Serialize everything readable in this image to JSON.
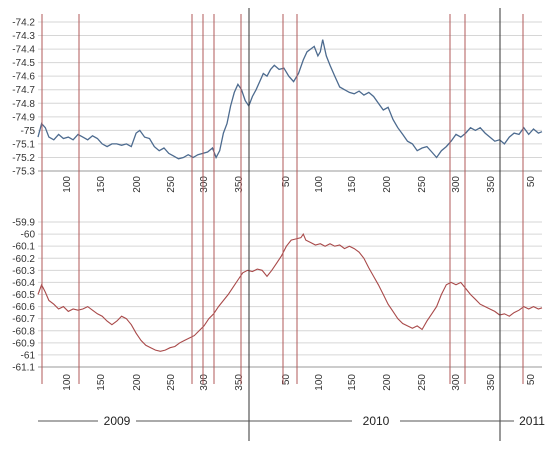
{
  "chart_data": [
    {
      "id": "top",
      "type": "line",
      "ylim": [
        -75.3,
        -74.2
      ],
      "yticks": [
        "-74.2",
        "-74.3",
        "-74.4",
        "-74.5",
        "-74.6",
        "-74.7",
        "-74.8",
        "-74.9",
        "-75",
        "-75.1",
        "-75.2",
        "-75.3"
      ],
      "xticks": [
        "100",
        "150",
        "200",
        "250",
        "300",
        "350",
        "50",
        "100",
        "150",
        "200",
        "250",
        "300",
        "350",
        "50"
      ],
      "grid": true,
      "series": [
        {
          "color": "#4d6b8f",
          "points": [
            [
              0,
              -75.05
            ],
            [
              3,
              -74.95
            ],
            [
              6,
              -74.98
            ],
            [
              9,
              -75.05
            ],
            [
              13,
              -75.07
            ],
            [
              17,
              -75.03
            ],
            [
              21,
              -75.06
            ],
            [
              25,
              -75.05
            ],
            [
              29,
              -75.07
            ],
            [
              33,
              -75.03
            ],
            [
              37,
              -75.05
            ],
            [
              41,
              -75.07
            ],
            [
              45,
              -75.04
            ],
            [
              49,
              -75.06
            ],
            [
              53,
              -75.1
            ],
            [
              57,
              -75.12
            ],
            [
              61,
              -75.1
            ],
            [
              65,
              -75.1
            ],
            [
              69,
              -75.11
            ],
            [
              73,
              -75.1
            ],
            [
              77,
              -75.12
            ],
            [
              81,
              -75.02
            ],
            [
              84,
              -75.0
            ],
            [
              88,
              -75.05
            ],
            [
              92,
              -75.06
            ],
            [
              96,
              -75.12
            ],
            [
              100,
              -75.15
            ],
            [
              104,
              -75.13
            ],
            [
              108,
              -75.17
            ],
            [
              112,
              -75.19
            ],
            [
              116,
              -75.21
            ],
            [
              120,
              -75.2
            ],
            [
              124,
              -75.18
            ],
            [
              128,
              -75.2
            ],
            [
              132,
              -75.18
            ],
            [
              136,
              -75.17
            ],
            [
              140,
              -75.16
            ],
            [
              144,
              -75.13
            ],
            [
              147,
              -75.2
            ],
            [
              150,
              -75.15
            ],
            [
              153,
              -75.02
            ],
            [
              156,
              -74.95
            ],
            [
              159,
              -74.82
            ],
            [
              162,
              -74.72
            ],
            [
              165,
              -74.66
            ],
            [
              168,
              -74.7
            ],
            [
              171,
              -74.78
            ],
            [
              174,
              -74.82
            ],
            [
              177,
              -74.75
            ],
            [
              180,
              -74.7
            ],
            [
              183,
              -74.64
            ],
            [
              186,
              -74.58
            ],
            [
              189,
              -74.6
            ],
            [
              192,
              -74.55
            ],
            [
              195,
              -74.52
            ],
            [
              199,
              -74.55
            ],
            [
              203,
              -74.54
            ],
            [
              207,
              -74.6
            ],
            [
              211,
              -74.64
            ],
            [
              215,
              -74.58
            ],
            [
              219,
              -74.48
            ],
            [
              222,
              -74.42
            ],
            [
              225,
              -74.4
            ],
            [
              228,
              -74.38
            ],
            [
              231,
              -74.45
            ],
            [
              233,
              -74.42
            ],
            [
              235,
              -74.33
            ],
            [
              238,
              -74.45
            ],
            [
              241,
              -74.52
            ],
            [
              245,
              -74.6
            ],
            [
              249,
              -74.68
            ],
            [
              253,
              -74.7
            ],
            [
              257,
              -74.72
            ],
            [
              261,
              -74.73
            ],
            [
              265,
              -74.71
            ],
            [
              269,
              -74.74
            ],
            [
              273,
              -74.72
            ],
            [
              277,
              -74.75
            ],
            [
              281,
              -74.8
            ],
            [
              285,
              -74.85
            ],
            [
              289,
              -74.83
            ],
            [
              293,
              -74.92
            ],
            [
              297,
              -74.98
            ],
            [
              301,
              -75.03
            ],
            [
              305,
              -75.08
            ],
            [
              309,
              -75.1
            ],
            [
              313,
              -75.15
            ],
            [
              317,
              -75.13
            ],
            [
              321,
              -75.12
            ],
            [
              325,
              -75.16
            ],
            [
              329,
              -75.2
            ],
            [
              333,
              -75.15
            ],
            [
              337,
              -75.12
            ],
            [
              341,
              -75.08
            ],
            [
              345,
              -75.03
            ],
            [
              349,
              -75.05
            ],
            [
              353,
              -75.02
            ],
            [
              357,
              -74.98
            ],
            [
              361,
              -75.0
            ],
            [
              365,
              -74.98
            ],
            [
              369,
              -75.02
            ],
            [
              373,
              -75.05
            ],
            [
              377,
              -75.08
            ],
            [
              381,
              -75.07
            ],
            [
              385,
              -75.1
            ],
            [
              389,
              -75.05
            ],
            [
              393,
              -75.02
            ],
            [
              397,
              -75.03
            ],
            [
              401,
              -74.98
            ],
            [
              405,
              -75.03
            ],
            [
              409,
              -74.99
            ],
            [
              413,
              -75.02
            ],
            [
              416,
              -75.01
            ]
          ]
        }
      ]
    },
    {
      "id": "bottom",
      "type": "line",
      "ylim": [
        -61.1,
        -59.9
      ],
      "yticks": [
        "-59.9",
        "-60",
        "-60.1",
        "-60.2",
        "-60.3",
        "-60.4",
        "-60.5",
        "-60.6",
        "-60.7",
        "-60.8",
        "-60.9",
        "-61",
        "-61.1"
      ],
      "xticks": [
        "100",
        "150",
        "200",
        "250",
        "300",
        "350",
        "50",
        "100",
        "150",
        "200",
        "250",
        "300",
        "350",
        "50"
      ],
      "grid": true,
      "series": [
        {
          "color": "#a94a4a",
          "points": [
            [
              0,
              -60.5
            ],
            [
              3,
              -60.42
            ],
            [
              6,
              -60.48
            ],
            [
              9,
              -60.55
            ],
            [
              13,
              -60.58
            ],
            [
              17,
              -60.62
            ],
            [
              21,
              -60.6
            ],
            [
              25,
              -60.64
            ],
            [
              29,
              -60.62
            ],
            [
              33,
              -60.63
            ],
            [
              37,
              -60.62
            ],
            [
              41,
              -60.6
            ],
            [
              45,
              -60.63
            ],
            [
              49,
              -60.66
            ],
            [
              53,
              -60.68
            ],
            [
              57,
              -60.72
            ],
            [
              61,
              -60.75
            ],
            [
              65,
              -60.72
            ],
            [
              69,
              -60.68
            ],
            [
              73,
              -60.7
            ],
            [
              77,
              -60.75
            ],
            [
              81,
              -60.82
            ],
            [
              85,
              -60.88
            ],
            [
              89,
              -60.92
            ],
            [
              93,
              -60.94
            ],
            [
              97,
              -60.96
            ],
            [
              101,
              -60.97
            ],
            [
              105,
              -60.96
            ],
            [
              109,
              -60.94
            ],
            [
              113,
              -60.93
            ],
            [
              117,
              -60.9
            ],
            [
              121,
              -60.88
            ],
            [
              125,
              -60.86
            ],
            [
              129,
              -60.84
            ],
            [
              133,
              -60.8
            ],
            [
              137,
              -60.76
            ],
            [
              141,
              -60.7
            ],
            [
              145,
              -60.66
            ],
            [
              149,
              -60.6
            ],
            [
              153,
              -60.55
            ],
            [
              157,
              -60.5
            ],
            [
              161,
              -60.44
            ],
            [
              165,
              -60.38
            ],
            [
              169,
              -60.32
            ],
            [
              173,
              -60.3
            ],
            [
              177,
              -60.31
            ],
            [
              181,
              -60.29
            ],
            [
              185,
              -60.3
            ],
            [
              189,
              -60.35
            ],
            [
              193,
              -60.3
            ],
            [
              197,
              -60.24
            ],
            [
              201,
              -60.18
            ],
            [
              205,
              -60.1
            ],
            [
              209,
              -60.05
            ],
            [
              213,
              -60.04
            ],
            [
              217,
              -60.03
            ],
            [
              219,
              -60.0
            ],
            [
              221,
              -60.05
            ],
            [
              225,
              -60.07
            ],
            [
              229,
              -60.09
            ],
            [
              233,
              -60.08
            ],
            [
              237,
              -60.1
            ],
            [
              241,
              -60.08
            ],
            [
              245,
              -60.1
            ],
            [
              249,
              -60.09
            ],
            [
              253,
              -60.12
            ],
            [
              257,
              -60.1
            ],
            [
              261,
              -60.12
            ],
            [
              265,
              -60.15
            ],
            [
              269,
              -60.2
            ],
            [
              273,
              -60.28
            ],
            [
              277,
              -60.35
            ],
            [
              281,
              -60.42
            ],
            [
              285,
              -60.5
            ],
            [
              289,
              -60.58
            ],
            [
              293,
              -60.64
            ],
            [
              297,
              -60.7
            ],
            [
              301,
              -60.74
            ],
            [
              305,
              -60.76
            ],
            [
              309,
              -60.78
            ],
            [
              313,
              -60.76
            ],
            [
              317,
              -60.79
            ],
            [
              321,
              -60.72
            ],
            [
              325,
              -60.66
            ],
            [
              329,
              -60.6
            ],
            [
              333,
              -60.5
            ],
            [
              337,
              -60.42
            ],
            [
              341,
              -60.4
            ],
            [
              345,
              -60.42
            ],
            [
              349,
              -60.4
            ],
            [
              353,
              -60.45
            ],
            [
              357,
              -60.5
            ],
            [
              361,
              -60.54
            ],
            [
              365,
              -60.58
            ],
            [
              369,
              -60.6
            ],
            [
              373,
              -60.62
            ],
            [
              377,
              -60.64
            ],
            [
              381,
              -60.67
            ],
            [
              385,
              -60.66
            ],
            [
              389,
              -60.68
            ],
            [
              393,
              -60.65
            ],
            [
              397,
              -60.63
            ],
            [
              401,
              -60.6
            ],
            [
              405,
              -60.62
            ],
            [
              409,
              -60.6
            ],
            [
              413,
              -60.62
            ],
            [
              416,
              -60.61
            ]
          ]
        }
      ]
    }
  ],
  "years": [
    "2009",
    "2010",
    "2011"
  ],
  "colors": {
    "grid": "#d6d6d6",
    "marker_lines": "#b05a5a",
    "year_lines": "#333333",
    "axis": "#999999"
  }
}
